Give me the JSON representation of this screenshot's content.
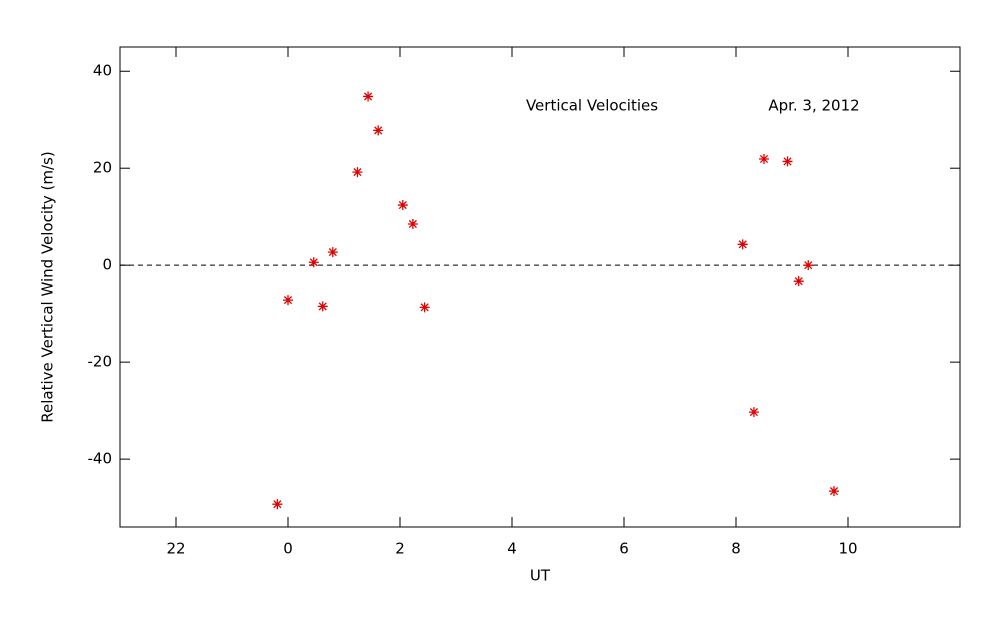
{
  "chart_data": {
    "type": "scatter",
    "x_label": "UT",
    "y_label": "Relative Vertical Wind Velocity (m/s)",
    "annotations": [
      "Vertical Velocities",
      "Apr. 3, 2012"
    ],
    "color": "#e00000",
    "xlim": [
      -3,
      12
    ],
    "ylim": [
      -54,
      45
    ],
    "xticks": [
      {
        "value": -2,
        "label": "22"
      },
      0,
      2,
      4,
      6,
      8,
      10
    ],
    "yticks": [
      -40,
      -20,
      0,
      20,
      40
    ],
    "reference_line": 0,
    "x": [
      -0.19,
      0,
      0.46,
      0.62,
      0.8,
      1.24,
      1.43,
      1.61,
      2.05,
      2.23,
      2.44,
      8.12,
      8.32,
      8.5,
      8.92,
      9.12,
      9.29,
      9.75
    ],
    "values": [
      -49.3,
      -7.2,
      0.6,
      -8.5,
      2.7,
      19.2,
      34.8,
      27.8,
      12.4,
      8.5,
      -8.7,
      4.3,
      -30.3,
      21.9,
      21.4,
      -3.3,
      0,
      -46.6
    ]
  }
}
